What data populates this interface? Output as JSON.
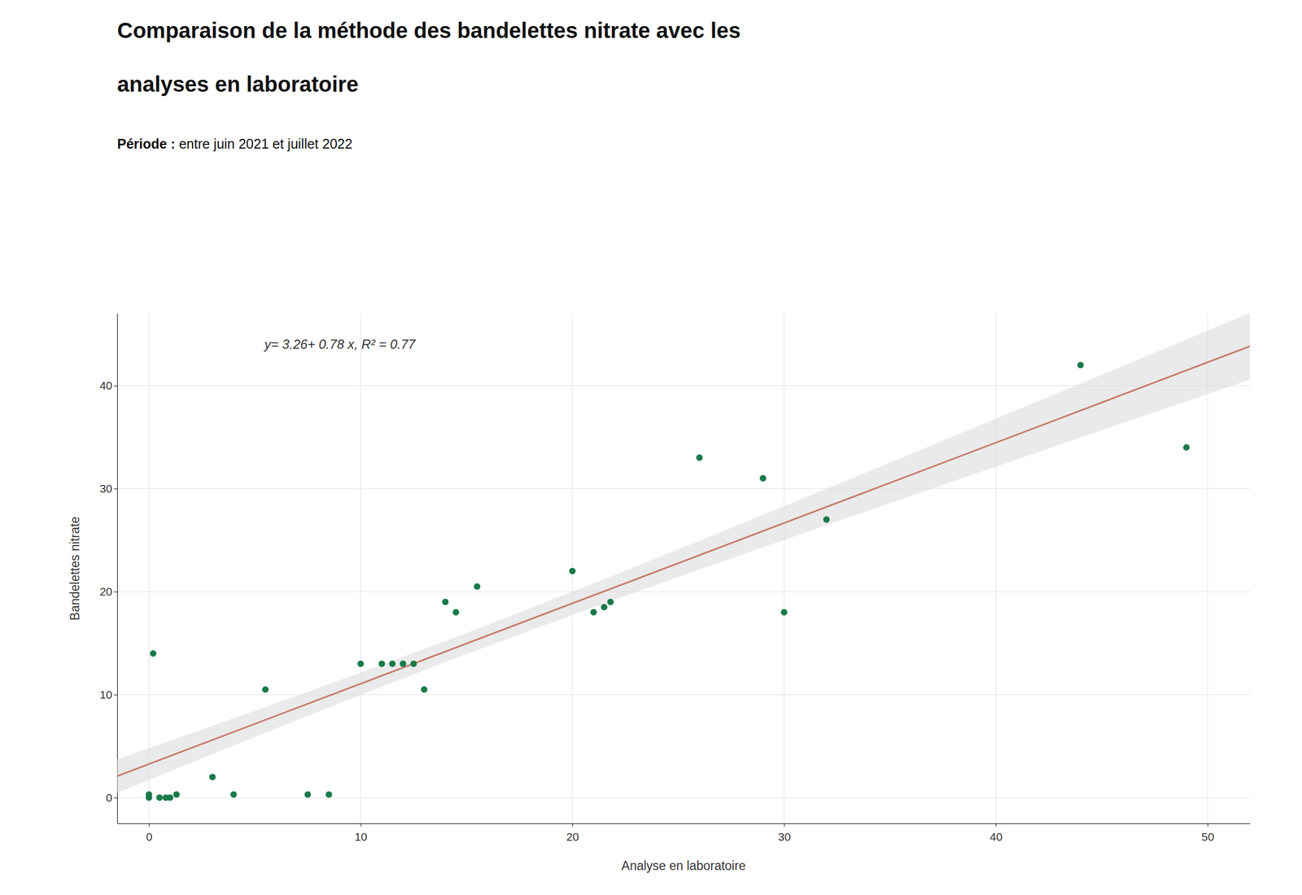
{
  "chart_data": {
    "type": "scatter",
    "title": [
      "Comparaison de la méthode des bandelettes nitrate avec les",
      "analyses en laboratoire"
    ],
    "subtitle": [
      "Période :",
      " entre juin 2021 et juillet 2022"
    ],
    "x_label": "Analyse en laboratoire",
    "y_label": "Bandelettes nitrate",
    "annotations": [
      {
        "text": "y= 3.26+ 0.78 x, R² = 0.77"
      }
    ],
    "xlim": [
      -1.5,
      52
    ],
    "ylim": [
      -2.5,
      47
    ],
    "xticks": [
      0,
      10,
      20,
      30,
      40,
      50
    ],
    "yticks": [
      0,
      10,
      20,
      30,
      40
    ],
    "grid": true,
    "series": [
      {
        "type": "area",
        "color": "#d8d8d8",
        "x": [
          -1.5,
          2,
          6,
          10,
          14,
          18,
          22,
          26,
          30,
          34,
          38,
          42,
          46,
          50,
          52
        ],
        "lower": [
          0.46,
          3.4,
          6.72,
          9.98,
          13.16,
          16.23,
          19.22,
          22.14,
          25.02,
          27.88,
          30.72,
          33.54,
          36.37,
          39.18,
          40.59
        ],
        "upper": [
          3.72,
          6.24,
          9.16,
          12.14,
          15.2,
          18.37,
          21.62,
          24.94,
          28.3,
          31.68,
          35.08,
          38.5,
          41.91,
          45.34,
          47.05
        ]
      },
      {
        "type": "line",
        "color": "#c8786a",
        "x": [
          -1.5,
          52
        ],
        "values": [
          2.09,
          43.82
        ]
      },
      {
        "type": "scatter",
        "color": "#1a7a4a",
        "x": [
          0.0,
          0.0,
          0.2,
          0.5,
          0.8,
          1.0,
          1.3,
          3.0,
          4.0,
          5.5,
          7.5,
          8.5,
          10.0,
          11.0,
          11.5,
          12.0,
          12.5,
          13.0,
          14.0,
          14.5,
          15.5,
          20.0,
          21.0,
          21.5,
          21.8,
          26.0,
          29.0,
          30.0,
          32.0,
          44.0,
          49.0
        ],
        "values": [
          0.0,
          0.3,
          14.0,
          0.0,
          0.0,
          0.0,
          0.3,
          2.0,
          0.3,
          10.5,
          0.3,
          0.3,
          13.0,
          13.0,
          13.0,
          13.0,
          13.0,
          10.5,
          19.0,
          18.0,
          20.5,
          22.0,
          18.0,
          18.5,
          19.0,
          33.0,
          31.0,
          18.0,
          27.0,
          42.0,
          34.0
        ]
      }
    ]
  }
}
